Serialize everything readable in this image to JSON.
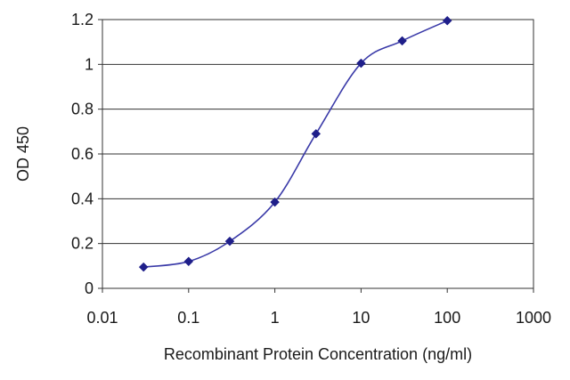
{
  "chart_data": {
    "type": "line",
    "xlabel": "Recombinant Protein Concentration (ng/ml)",
    "ylabel": "OD 450",
    "x_scale": "log",
    "xlim": [
      0.01,
      1000
    ],
    "ylim": [
      0,
      1.2
    ],
    "x_ticks": [
      0.01,
      0.1,
      1,
      10,
      100,
      1000
    ],
    "x_tick_labels": [
      "0.01",
      "0.1",
      "1",
      "10",
      "100",
      "1000"
    ],
    "y_ticks": [
      0,
      0.2,
      0.4,
      0.6,
      0.8,
      1,
      1.2
    ],
    "y_tick_labels": [
      "0",
      "0.2",
      "0.4",
      "0.6",
      "0.8",
      "1",
      "1.2"
    ],
    "grid": "horizontal",
    "series": [
      {
        "color": "#3a3aa8",
        "marker": "diamond",
        "x": [
          0.03,
          0.1,
          0.3,
          1,
          3,
          10,
          30,
          100
        ],
        "y": [
          0.095,
          0.12,
          0.21,
          0.385,
          0.69,
          1.005,
          1.105,
          1.195
        ]
      }
    ]
  }
}
